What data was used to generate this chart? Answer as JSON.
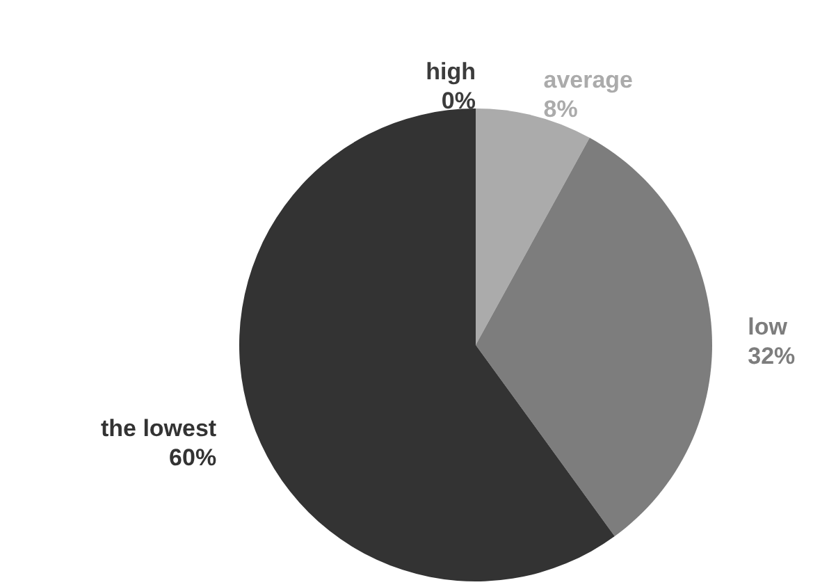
{
  "chart_data": {
    "type": "pie",
    "categories": [
      "high",
      "average",
      "low",
      "the lowest"
    ],
    "values": [
      0,
      8,
      32,
      60
    ],
    "value_labels": [
      "0%",
      "8%",
      "32%",
      "60%"
    ],
    "colors": [
      "#3c3c3c",
      "#ababab",
      "#7d7d7d",
      "#333333"
    ],
    "legend": false
  }
}
